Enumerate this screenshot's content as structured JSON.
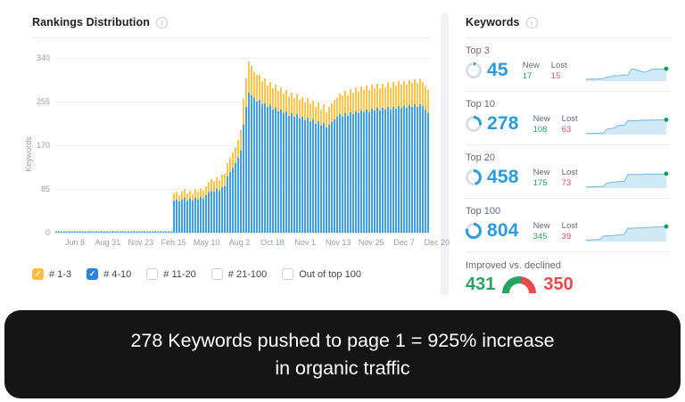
{
  "colors": {
    "blue": "#2b9be0",
    "bar_blue": "#3f9fe8",
    "bar_yellow": "#fdc54c",
    "green": "#27a45f",
    "lost_red": "#d94f6e",
    "declined_red": "#e8484e",
    "ring_gray": "#dadde2",
    "spark_fill": "#cfe9f7",
    "spark_line": "#7ab7d8",
    "spark_dot": "#0f9e57",
    "checkbox_yellow": "#f9bc40",
    "checkbox_blue": "#2f80e0"
  },
  "left_panel": {
    "title": "Rankings Distribution",
    "info_icon": "i",
    "legend": [
      {
        "label": "# 1-3",
        "checked": true,
        "color": "#f9bc40"
      },
      {
        "label": "# 4-10",
        "checked": true,
        "color": "#2f80e0"
      },
      {
        "label": "# 11-20",
        "checked": false,
        "color": ""
      },
      {
        "label": "# 21-100",
        "checked": false,
        "color": ""
      },
      {
        "label": "Out of top 100",
        "checked": false,
        "color": ""
      }
    ]
  },
  "chart_data": {
    "type": "bar",
    "stacked": true,
    "title": "Rankings Distribution",
    "ylabel": "Keywords",
    "ylim": [
      0,
      340
    ],
    "yticks": [
      0,
      85,
      170,
      255,
      340
    ],
    "grid": true,
    "xticklabels": [
      "Jun 8",
      "Aug 31",
      "Nov 23",
      "Feb 15",
      "May 10",
      "Aug 2",
      "Oct 18",
      "Nov 1",
      "Nov 13",
      "Nov 25",
      "Dec 7",
      "Dec 20"
    ],
    "series": [
      {
        "name": "# 4-10",
        "color": "#3f9fe8",
        "values": [
          1,
          1,
          1,
          2,
          1,
          1,
          2,
          1,
          1,
          2,
          1,
          1,
          1,
          2,
          1,
          2,
          1,
          1,
          2,
          2,
          1,
          2,
          1,
          2,
          2,
          1,
          2,
          2,
          2,
          2,
          1,
          2,
          2,
          1,
          2,
          2,
          2,
          1,
          2,
          2,
          2,
          1,
          2,
          2,
          62,
          65,
          60,
          64,
          67,
          63,
          66,
          62,
          68,
          65,
          70,
          66,
          72,
          78,
          82,
          79,
          85,
          82,
          88,
          90,
          110,
          118,
          126,
          135,
          145,
          160,
          210,
          245,
          273,
          268,
          262,
          255,
          258,
          250,
          252,
          245,
          248,
          240,
          243,
          236,
          240,
          232,
          236,
          228,
          232,
          225,
          230,
          222,
          226,
          218,
          224,
          216,
          220,
          212,
          216,
          208,
          214,
          205,
          210,
          215,
          220,
          225,
          230,
          226,
          232,
          228,
          234,
          230,
          236,
          232,
          238,
          234,
          240,
          235,
          241,
          237,
          242,
          238,
          243,
          239,
          244,
          240,
          245,
          241,
          246,
          242,
          247,
          243,
          248,
          244,
          249,
          245,
          250,
          246,
          240,
          233
        ]
      },
      {
        "name": "# 1-3",
        "color": "#fdc54c",
        "values": [
          1,
          1,
          2,
          1,
          1,
          1,
          1,
          2,
          1,
          1,
          1,
          2,
          1,
          1,
          1,
          1,
          2,
          1,
          1,
          1,
          2,
          1,
          1,
          1,
          1,
          2,
          1,
          1,
          1,
          2,
          1,
          1,
          2,
          1,
          1,
          2,
          1,
          2,
          1,
          1,
          1,
          2,
          1,
          2,
          14,
          16,
          13,
          15,
          17,
          14,
          16,
          13,
          18,
          15,
          18,
          15,
          18,
          20,
          22,
          20,
          23,
          21,
          24,
          24,
          26,
          28,
          30,
          32,
          35,
          40,
          50,
          55,
          60,
          58,
          50,
          52,
          48,
          45,
          48,
          42,
          45,
          42,
          45,
          40,
          43,
          38,
          42,
          38,
          40,
          36,
          40,
          36,
          38,
          35,
          38,
          34,
          37,
          33,
          36,
          32,
          36,
          30,
          34,
          36,
          38,
          37,
          40,
          42,
          44,
          40,
          45,
          42,
          46,
          42,
          46,
          44,
          47,
          43,
          46,
          44,
          47,
          43,
          47,
          44,
          48,
          44,
          48,
          45,
          48,
          45,
          49,
          45,
          49,
          46,
          49,
          46,
          50,
          46,
          45,
          45
        ]
      }
    ]
  },
  "right_panel": {
    "title": "Keywords",
    "info_icon": "i",
    "rows": [
      {
        "label": "Top 3",
        "value": "45",
        "new_label": "New",
        "new": "17",
        "lost_label": "Lost",
        "lost": "15",
        "ring_pct": 5,
        "spark": [
          0.1,
          0.1,
          0.11,
          0.1,
          0.12,
          0.13,
          0.2,
          0.22,
          0.28,
          0.26,
          0.3,
          0.32,
          0.3,
          0.62,
          0.6,
          0.55,
          0.48,
          0.45,
          0.52,
          0.6,
          0.63,
          0.6,
          0.62,
          0.63
        ]
      },
      {
        "label": "Top 10",
        "value": "278",
        "new_label": "New",
        "new": "108",
        "lost_label": "Lost",
        "lost": "63",
        "ring_pct": 28,
        "spark": [
          0.06,
          0.06,
          0.07,
          0.07,
          0.08,
          0.08,
          0.28,
          0.3,
          0.33,
          0.45,
          0.48,
          0.46,
          0.72,
          0.7,
          0.72,
          0.71,
          0.73,
          0.74,
          0.73,
          0.75,
          0.74,
          0.76,
          0.75,
          0.76
        ]
      },
      {
        "label": "Top 20",
        "value": "458",
        "new_label": "New",
        "new": "175",
        "lost_label": "Lost",
        "lost": "73",
        "ring_pct": 46,
        "spark": [
          0.06,
          0.06,
          0.07,
          0.07,
          0.08,
          0.09,
          0.25,
          0.28,
          0.3,
          0.32,
          0.35,
          0.34,
          0.7,
          0.69,
          0.7,
          0.68,
          0.7,
          0.71,
          0.7,
          0.72,
          0.71,
          0.72,
          0.72,
          0.73
        ]
      },
      {
        "label": "Top 100",
        "value": "804",
        "new_label": "New",
        "new": "345",
        "lost_label": "Lost",
        "lost": "39",
        "ring_pct": 80,
        "spark": [
          0.08,
          0.08,
          0.09,
          0.1,
          0.1,
          0.28,
          0.3,
          0.29,
          0.31,
          0.33,
          0.35,
          0.36,
          0.68,
          0.67,
          0.69,
          0.7,
          0.69,
          0.71,
          0.72,
          0.73,
          0.74,
          0.75,
          0.76,
          0.77
        ]
      }
    ],
    "improved": {
      "label": "Improved vs. declined",
      "improved": "431",
      "declined": "350",
      "improved_pct": 55
    }
  },
  "banner": {
    "line1": "278 Keywords pushed to page 1 = 925% increase",
    "line2": "in organic traffic"
  }
}
